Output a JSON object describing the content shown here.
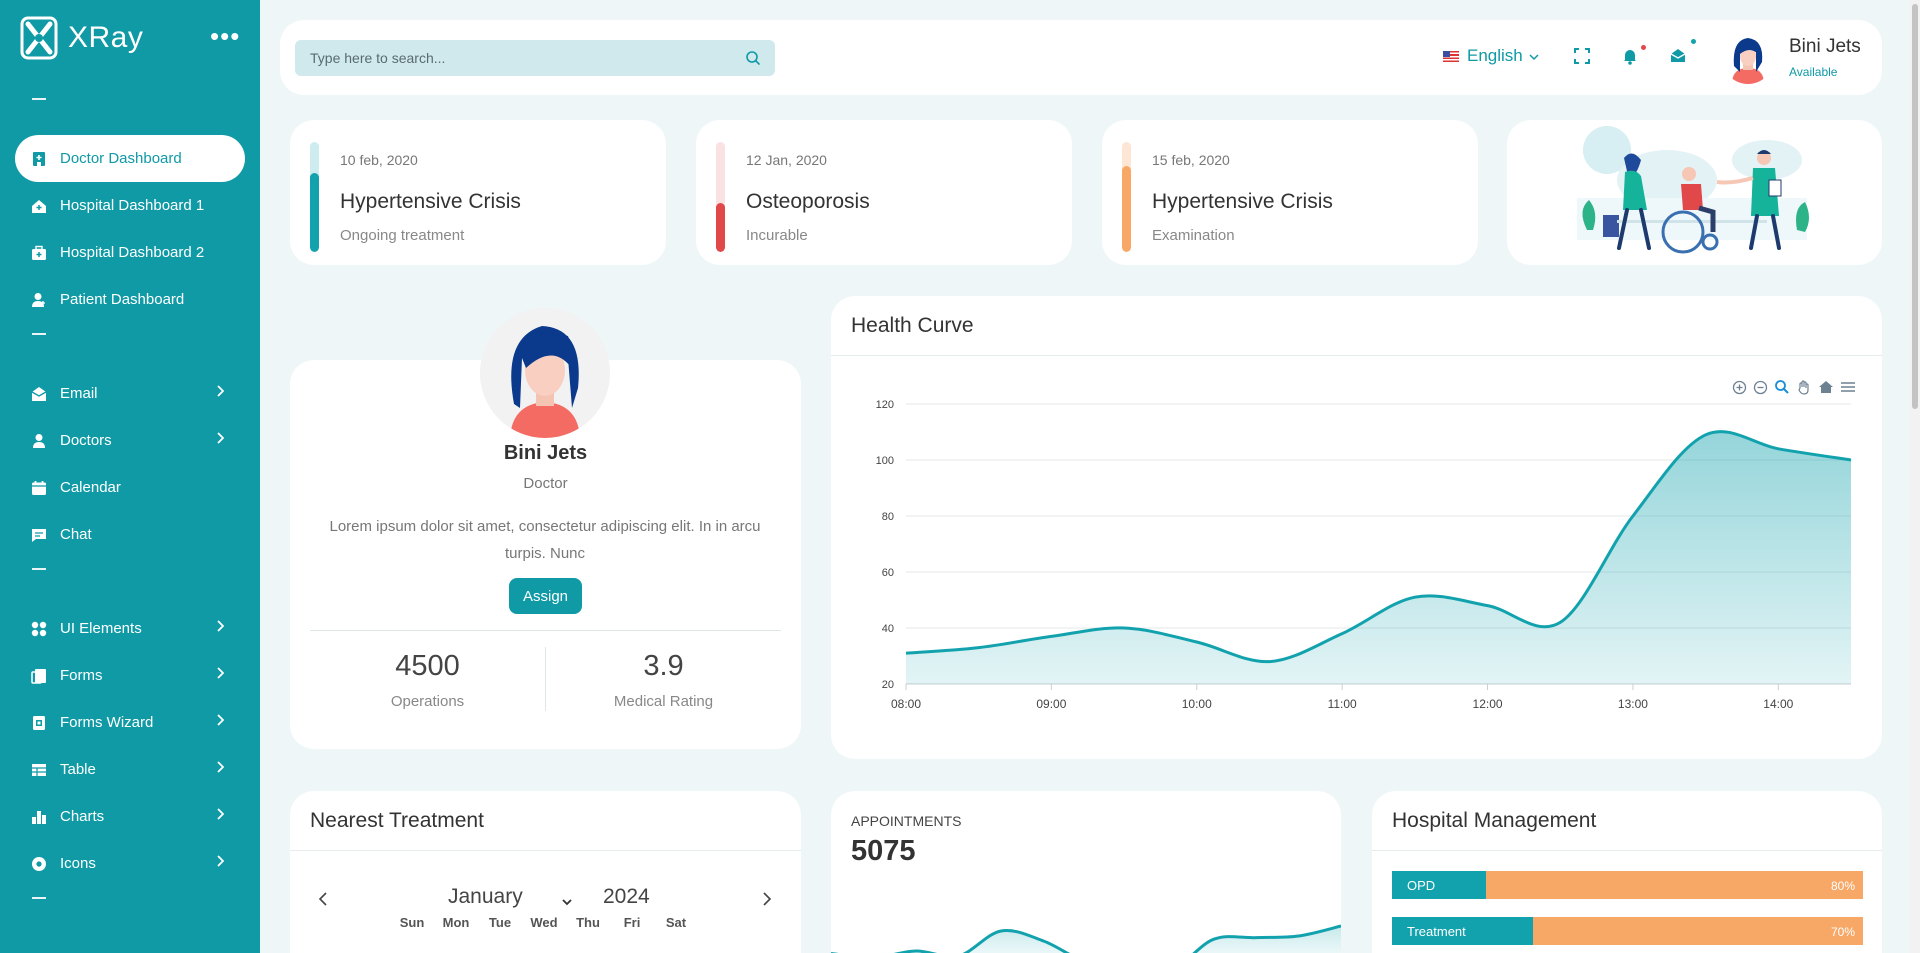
{
  "brand": {
    "name": "XRay"
  },
  "sidebar": {
    "items": [
      {
        "label": "Doctor Dashboard",
        "icon": "hospital-icon",
        "active": true
      },
      {
        "label": "Hospital Dashboard 1",
        "icon": "home-icon"
      },
      {
        "label": "Hospital Dashboard 2",
        "icon": "briefcase-icon"
      },
      {
        "label": "Patient Dashboard",
        "icon": "patient-icon"
      },
      {
        "label": "Email",
        "icon": "mail-icon",
        "has_sub": true
      },
      {
        "label": "Doctors",
        "icon": "user-icon",
        "has_sub": true
      },
      {
        "label": "Calendar",
        "icon": "calendar-icon"
      },
      {
        "label": "Chat",
        "icon": "chat-icon"
      },
      {
        "label": "UI Elements",
        "icon": "grid-icon",
        "has_sub": true
      },
      {
        "label": "Forms",
        "icon": "forms-icon",
        "has_sub": true
      },
      {
        "label": "Forms Wizard",
        "icon": "wizard-icon",
        "has_sub": true
      },
      {
        "label": "Table",
        "icon": "table-icon",
        "has_sub": true
      },
      {
        "label": "Charts",
        "icon": "charts-icon",
        "has_sub": true
      },
      {
        "label": "Icons",
        "icon": "icons-icon",
        "has_sub": true
      }
    ]
  },
  "header": {
    "search_placeholder": "Type here to search...",
    "language": "English",
    "user_name": "Bini Jets",
    "user_status": "Available"
  },
  "treatments": [
    {
      "date": "10 feb, 2020",
      "title": "Hypertensive Crisis",
      "status": "Ongoing treatment",
      "color": "#12a2ad",
      "track": "#cdecef",
      "level": 0.72
    },
    {
      "date": "12 Jan, 2020",
      "title": "Osteoporosis",
      "status": "Incurable",
      "color": "#e0484a",
      "track": "#fbe2e2",
      "level": 0.45
    },
    {
      "date": "15 feb, 2020",
      "title": "Hypertensive Crisis",
      "status": "Examination",
      "color": "#f7a866",
      "track": "#fde6d3",
      "level": 0.78
    }
  ],
  "profile": {
    "name": "Bini Jets",
    "role": "Doctor",
    "description": "Lorem ipsum dolor sit amet, consectetur adipiscing elit. In in arcu turpis. Nunc",
    "assign_label": "Assign",
    "stats": [
      {
        "value": "4500",
        "label": "Operations"
      },
      {
        "value": "3.9",
        "label": "Medical Rating"
      }
    ]
  },
  "health_curve": {
    "title": "Health Curve",
    "chart_data": {
      "type": "area",
      "x": [
        "08:00",
        "08:30",
        "09:00",
        "09:30",
        "10:00",
        "10:30",
        "11:00",
        "11:30",
        "12:00",
        "12:30",
        "13:00",
        "13:30",
        "14:00",
        "14:30"
      ],
      "values": [
        31,
        33,
        37,
        40,
        35,
        28,
        38,
        51,
        48,
        42,
        80,
        109,
        104,
        100
      ],
      "x_ticks": [
        "08:00",
        "09:00",
        "10:00",
        "11:00",
        "12:00",
        "13:00",
        "14:00"
      ],
      "y_ticks": [
        20,
        40,
        60,
        80,
        100,
        120
      ],
      "ylim": [
        20,
        120
      ],
      "grid": true,
      "color": "#12a2ad"
    }
  },
  "nearest_treatment": {
    "title": "Nearest Treatment",
    "month": "January",
    "year": "2024",
    "weekdays": [
      "Sun",
      "Mon",
      "Tue",
      "Wed",
      "Thu",
      "Fri",
      "Sat"
    ]
  },
  "appointments": {
    "label": "APPOINTMENTS",
    "value": "5075",
    "chart_data": {
      "type": "line",
      "values": [
        45,
        40,
        48,
        42,
        72,
        60,
        35,
        30,
        25,
        62,
        64,
        66,
        78
      ],
      "color": "#12a2ad"
    }
  },
  "hospital_management": {
    "title": "Hospital Management",
    "rows": [
      {
        "label": "OPD",
        "percent_label": "80%",
        "segment": 0.2
      },
      {
        "label": "Treatment",
        "percent_label": "70%",
        "segment": 0.3
      }
    ]
  }
}
